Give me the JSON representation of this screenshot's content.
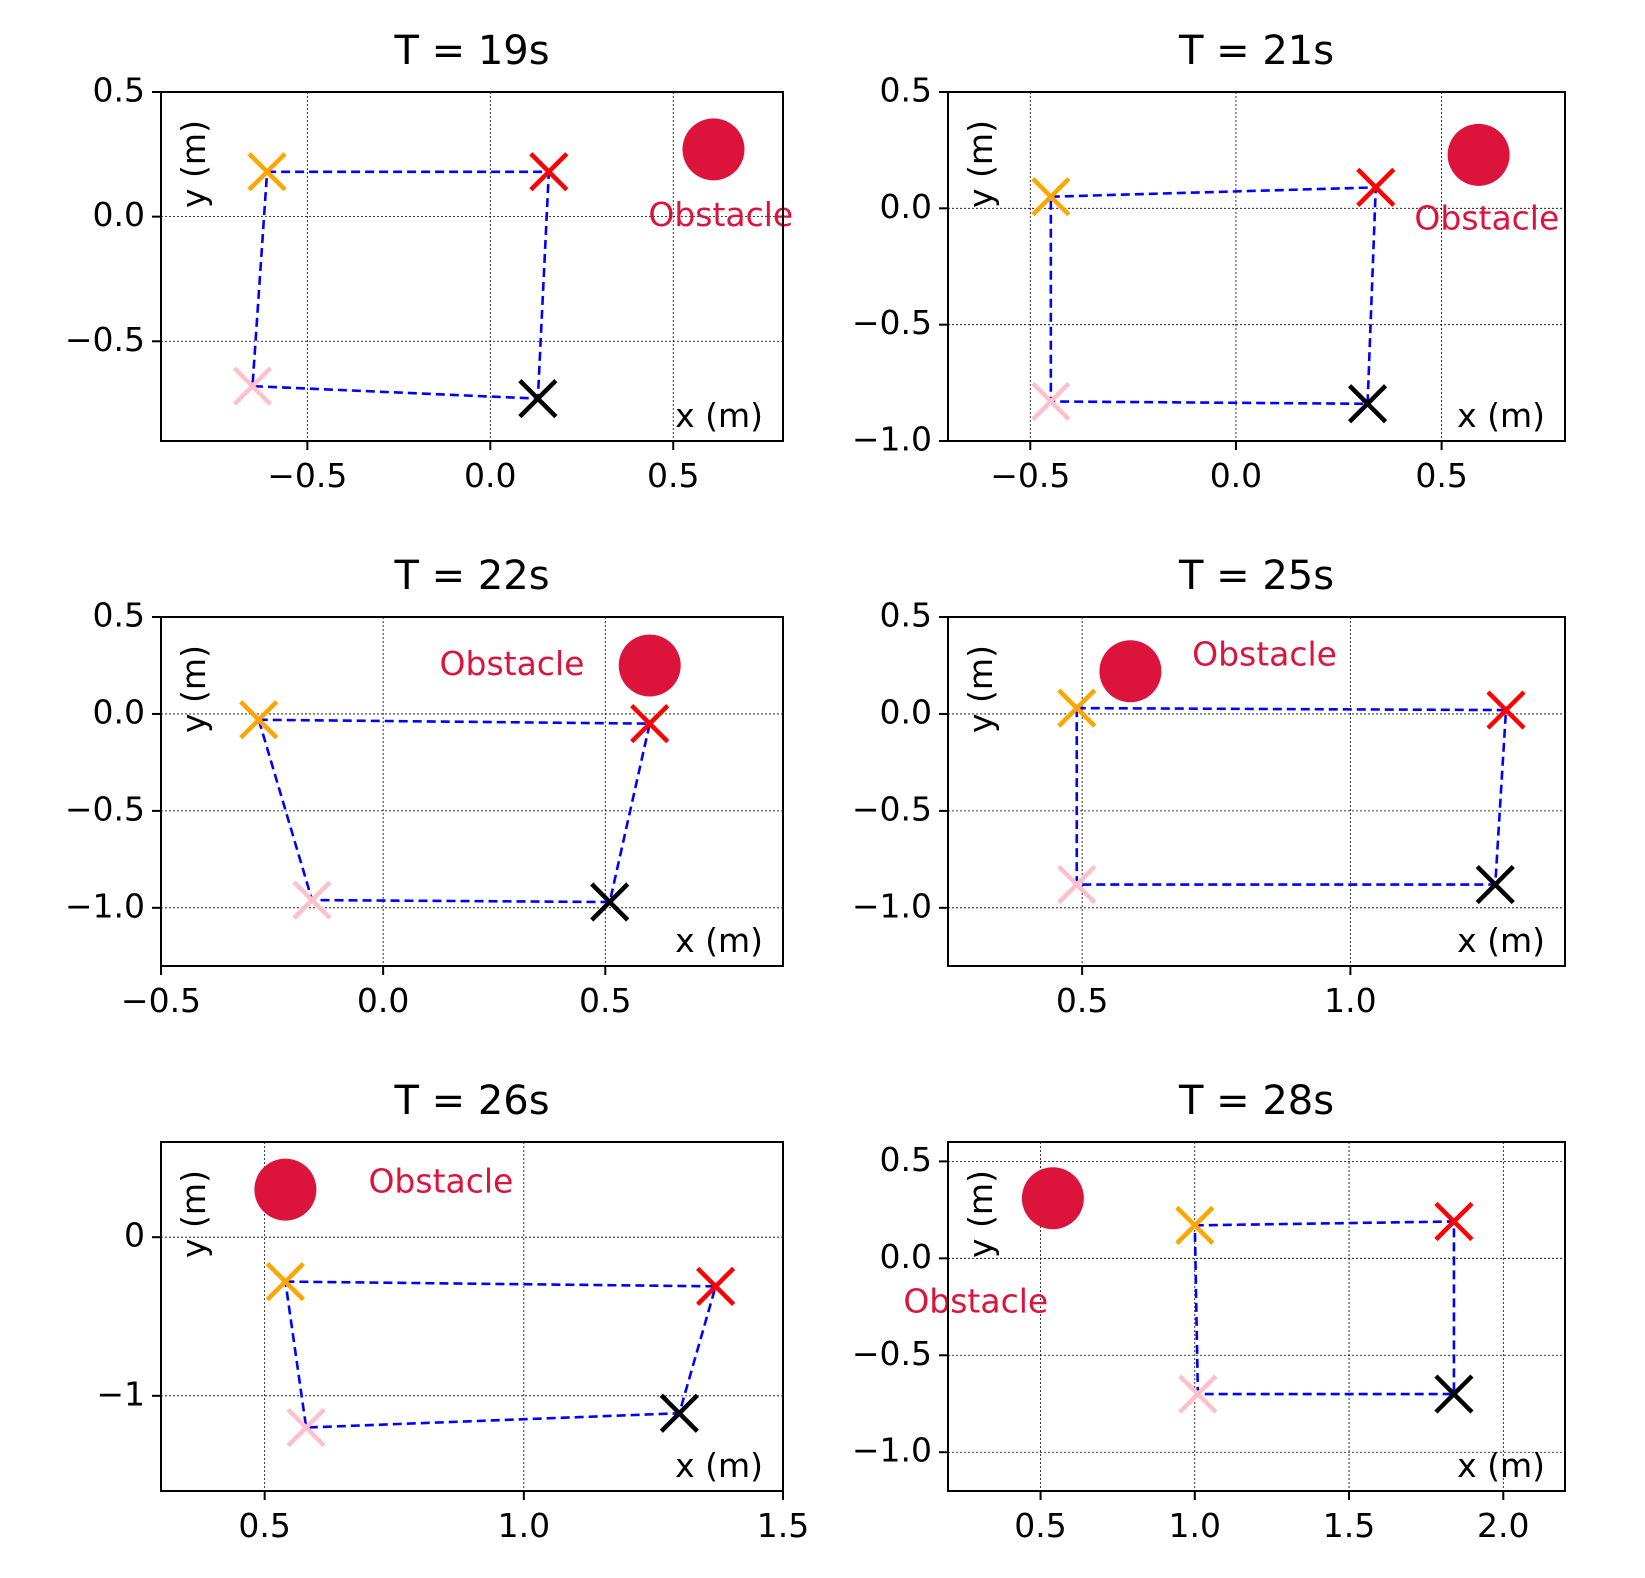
{
  "figure": {
    "colors": {
      "orange": "#FFA500",
      "red": "#FF0000",
      "pink": "#FFC0CB",
      "black": "#000000",
      "path": "#0000FF",
      "obstacle": "#DC143C",
      "grid": "#000000"
    }
  },
  "chart_data": [
    {
      "type": "scatter",
      "title": "T = 19s",
      "xlabel": "x (m)",
      "ylabel": "y (m)",
      "xlim": [
        -0.9,
        0.8
      ],
      "ylim": [
        -0.9,
        0.5
      ],
      "xticks": [
        -0.5,
        0.0,
        0.5
      ],
      "xtick_labels": [
        "−0.5",
        "0.0",
        "0.5"
      ],
      "yticks": [
        -0.5,
        0.0,
        0.5
      ],
      "ytick_labels": [
        "−0.5",
        "0.0",
        "0.5"
      ],
      "grid": true,
      "markers": [
        {
          "name": "orange",
          "x": -0.61,
          "y": 0.18
        },
        {
          "name": "red",
          "x": 0.16,
          "y": 0.18
        },
        {
          "name": "black",
          "x": 0.13,
          "y": -0.73
        },
        {
          "name": "pink",
          "x": -0.65,
          "y": -0.68
        }
      ],
      "path_order": [
        "orange",
        "red",
        "black",
        "pink",
        "orange"
      ],
      "obstacle": {
        "x": 0.61,
        "y": 0.27,
        "label": "Obstacle",
        "label_x": 0.63,
        "label_y": 0.0
      }
    },
    {
      "type": "scatter",
      "title": "T = 21s",
      "xlabel": "x (m)",
      "ylabel": "y (m)",
      "xlim": [
        -0.7,
        0.8
      ],
      "ylim": [
        -1.0,
        0.5
      ],
      "xticks": [
        -0.5,
        0.0,
        0.5
      ],
      "xtick_labels": [
        "−0.5",
        "0.0",
        "0.5"
      ],
      "yticks": [
        -1.0,
        -0.5,
        0.0,
        0.5
      ],
      "ytick_labels": [
        "−1.0",
        "−0.5",
        "0.0",
        "0.5"
      ],
      "grid": true,
      "markers": [
        {
          "name": "orange",
          "x": -0.45,
          "y": 0.05
        },
        {
          "name": "red",
          "x": 0.34,
          "y": 0.09
        },
        {
          "name": "black",
          "x": 0.32,
          "y": -0.84
        },
        {
          "name": "pink",
          "x": -0.45,
          "y": -0.83
        }
      ],
      "path_order": [
        "orange",
        "red",
        "black",
        "pink",
        "orange"
      ],
      "obstacle": {
        "x": 0.59,
        "y": 0.23,
        "label": "Obstacle",
        "label_x": 0.61,
        "label_y": -0.05
      }
    },
    {
      "type": "scatter",
      "title": "T = 22s",
      "xlabel": "x (m)",
      "ylabel": "y (m)",
      "xlim": [
        -0.5,
        0.9
      ],
      "ylim": [
        -1.3,
        0.5
      ],
      "xticks": [
        -0.5,
        0.0,
        0.5
      ],
      "xtick_labels": [
        "−0.5",
        "0.0",
        "0.5"
      ],
      "yticks": [
        -1.0,
        -0.5,
        0.0,
        0.5
      ],
      "ytick_labels": [
        "−1.0",
        "−0.5",
        "0.0",
        "0.5"
      ],
      "grid": true,
      "markers": [
        {
          "name": "orange",
          "x": -0.28,
          "y": -0.03
        },
        {
          "name": "red",
          "x": 0.6,
          "y": -0.05
        },
        {
          "name": "black",
          "x": 0.51,
          "y": -0.97
        },
        {
          "name": "pink",
          "x": -0.16,
          "y": -0.96
        }
      ],
      "path_order": [
        "orange",
        "red",
        "black",
        "pink",
        "orange"
      ],
      "obstacle": {
        "x": 0.6,
        "y": 0.25,
        "label": "Obstacle",
        "label_x": 0.29,
        "label_y": 0.25
      }
    },
    {
      "type": "scatter",
      "title": "T = 25s",
      "xlabel": "x (m)",
      "ylabel": "y (m)",
      "xlim": [
        0.25,
        1.4
      ],
      "ylim": [
        -1.3,
        0.5
      ],
      "xticks": [
        0.5,
        1.0
      ],
      "xtick_labels": [
        "0.5",
        "1.0"
      ],
      "yticks": [
        -1.0,
        -0.5,
        0.0,
        0.5
      ],
      "ytick_labels": [
        "−1.0",
        "−0.5",
        "0.0",
        "0.5"
      ],
      "grid": true,
      "markers": [
        {
          "name": "orange",
          "x": 0.49,
          "y": 0.03
        },
        {
          "name": "red",
          "x": 1.29,
          "y": 0.02
        },
        {
          "name": "black",
          "x": 1.27,
          "y": -0.88
        },
        {
          "name": "pink",
          "x": 0.49,
          "y": -0.88
        }
      ],
      "path_order": [
        "orange",
        "red",
        "black",
        "pink",
        "orange"
      ],
      "obstacle": {
        "x": 0.59,
        "y": 0.22,
        "label": "Obstacle",
        "label_x": 0.84,
        "label_y": 0.3
      }
    },
    {
      "type": "scatter",
      "title": "T = 26s",
      "xlabel": "x (m)",
      "ylabel": "y (m)",
      "xlim": [
        0.3,
        1.5
      ],
      "ylim": [
        -1.6,
        0.6
      ],
      "xticks": [
        0.5,
        1.0,
        1.5
      ],
      "xtick_labels": [
        "0.5",
        "1.0",
        "1.5"
      ],
      "yticks": [
        -1.0,
        0.0
      ],
      "ytick_labels": [
        "−1",
        "0"
      ],
      "grid": true,
      "markers": [
        {
          "name": "orange",
          "x": 0.54,
          "y": -0.28
        },
        {
          "name": "red",
          "x": 1.37,
          "y": -0.31
        },
        {
          "name": "black",
          "x": 1.3,
          "y": -1.11
        },
        {
          "name": "pink",
          "x": 0.58,
          "y": -1.2
        }
      ],
      "path_order": [
        "orange",
        "red",
        "black",
        "pink",
        "orange"
      ],
      "obstacle": {
        "x": 0.54,
        "y": 0.3,
        "label": "Obstacle",
        "label_x": 0.84,
        "label_y": 0.34
      }
    },
    {
      "type": "scatter",
      "title": "T = 28s",
      "xlabel": "x (m)",
      "ylabel": "y (m)",
      "xlim": [
        0.2,
        2.2
      ],
      "ylim": [
        -1.2,
        0.6
      ],
      "xticks": [
        0.5,
        1.0,
        1.5,
        2.0
      ],
      "xtick_labels": [
        "0.5",
        "1.0",
        "1.5",
        "2.0"
      ],
      "yticks": [
        -1.0,
        -0.5,
        0.0,
        0.5
      ],
      "ytick_labels": [
        "−1.0",
        "−0.5",
        "0.0",
        "0.5"
      ],
      "grid": true,
      "markers": [
        {
          "name": "orange",
          "x": 1.0,
          "y": 0.17
        },
        {
          "name": "red",
          "x": 1.84,
          "y": 0.19
        },
        {
          "name": "black",
          "x": 1.84,
          "y": -0.7
        },
        {
          "name": "pink",
          "x": 1.01,
          "y": -0.7
        }
      ],
      "path_order": [
        "orange",
        "red",
        "black",
        "pink",
        "orange"
      ],
      "obstacle": {
        "x": 0.54,
        "y": 0.31,
        "label": "Obstacle",
        "label_x": 0.29,
        "label_y": -0.23
      }
    }
  ]
}
